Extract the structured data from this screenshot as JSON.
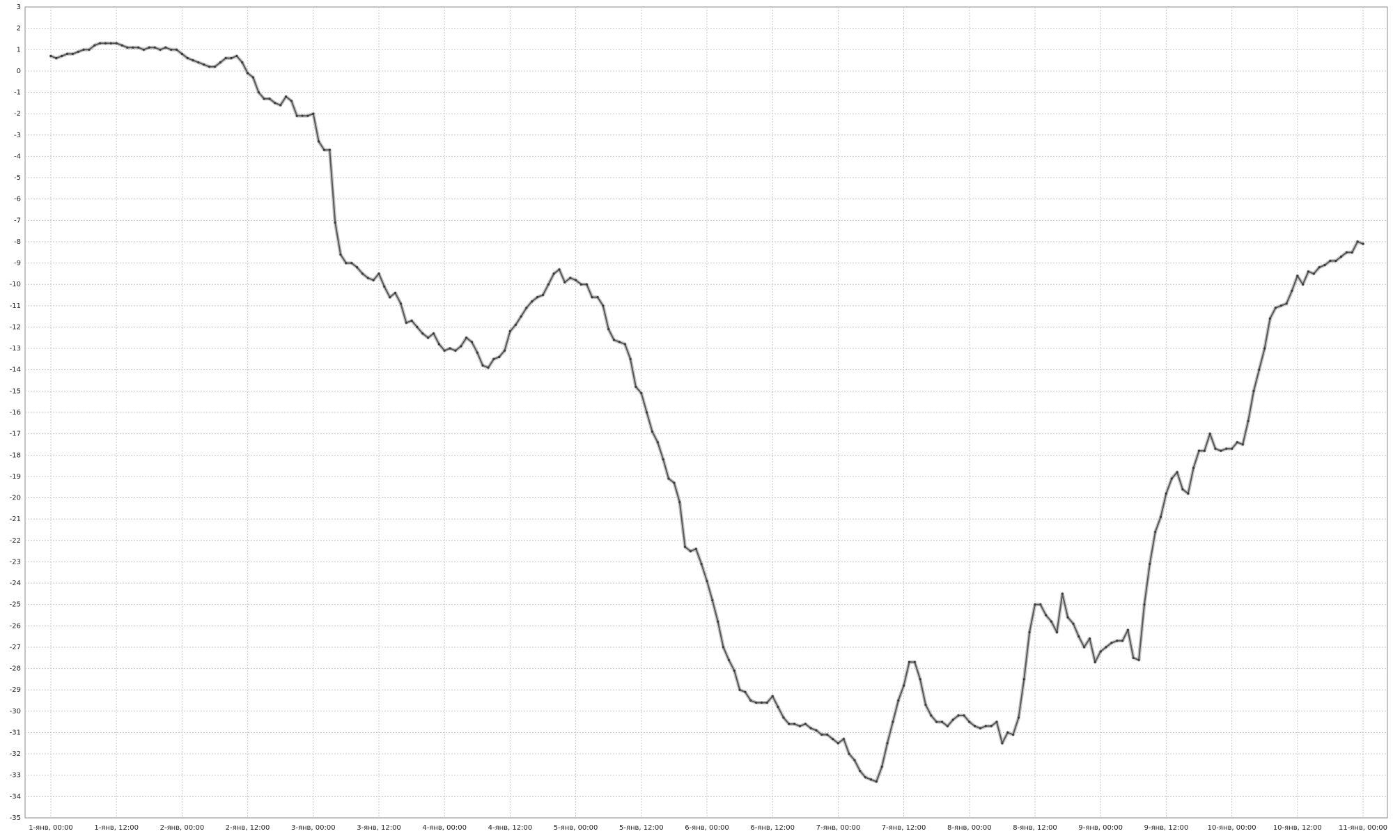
{
  "chart_data": {
    "type": "line",
    "title": "",
    "xlabel": "",
    "ylabel": "",
    "grid": true,
    "legend": "none",
    "ylim": [
      -35,
      3
    ],
    "xlim_hours": [
      -12,
      240
    ],
    "y_ticks": [
      3,
      2,
      1,
      0,
      -1,
      -2,
      -3,
      -4,
      -5,
      -6,
      -7,
      -8,
      -9,
      -10,
      -11,
      -12,
      -13,
      -14,
      -15,
      -16,
      -17,
      -18,
      -19,
      -20,
      -21,
      -22,
      -23,
      -24,
      -25,
      -26,
      -27,
      -28,
      -29,
      -30,
      -31,
      -32,
      -33,
      -34,
      -35
    ],
    "x_ticks": [
      {
        "hour": 0,
        "label": "1-янв, 00:00"
      },
      {
        "hour": 12,
        "label": "1-янв, 12:00"
      },
      {
        "hour": 24,
        "label": "2-янв, 00:00"
      },
      {
        "hour": 36,
        "label": "2-янв, 12:00"
      },
      {
        "hour": 48,
        "label": "3-янв, 00:00"
      },
      {
        "hour": 60,
        "label": "3-янв, 12:00"
      },
      {
        "hour": 72,
        "label": "4-янв, 00:00"
      },
      {
        "hour": 84,
        "label": "4-янв, 12:00"
      },
      {
        "hour": 96,
        "label": "5-янв, 00:00"
      },
      {
        "hour": 108,
        "label": "5-янв, 12:00"
      },
      {
        "hour": 120,
        "label": "6-янв, 00:00"
      },
      {
        "hour": 132,
        "label": "6-янв, 12:00"
      },
      {
        "hour": 144,
        "label": "7-янв, 00:00"
      },
      {
        "hour": 156,
        "label": "7-янв, 12:00"
      },
      {
        "hour": 168,
        "label": "8-янв, 00:00"
      },
      {
        "hour": 180,
        "label": "8-янв, 12:00"
      },
      {
        "hour": 192,
        "label": "9-янв, 00:00"
      },
      {
        "hour": 204,
        "label": "9-янв, 12:00"
      },
      {
        "hour": 216,
        "label": "10-янв, 00:00"
      },
      {
        "hour": 228,
        "label": "10-янв, 12:00"
      },
      {
        "hour": 240,
        "label": "11-янв, 00:00"
      }
    ],
    "series": [
      {
        "color": "#5a5a5a",
        "x": [
          0,
          1,
          2,
          3,
          4,
          5,
          6,
          7,
          8,
          9,
          10,
          11,
          12,
          13,
          14,
          15,
          16,
          17,
          18,
          19,
          20,
          21,
          22,
          23,
          24,
          25,
          26,
          27,
          28,
          29,
          30,
          31,
          32,
          33,
          34,
          35,
          36,
          37,
          38,
          39,
          40,
          41,
          42,
          43,
          44,
          45,
          46,
          47,
          48,
          49,
          50,
          51,
          52,
          53,
          54,
          55,
          56,
          57,
          58,
          59,
          60,
          61,
          62,
          63,
          64,
          65,
          66,
          67,
          68,
          69,
          70,
          71,
          72,
          73,
          74,
          75,
          76,
          77,
          78,
          79,
          80,
          81,
          82,
          83,
          84,
          85,
          86,
          87,
          88,
          89,
          90,
          91,
          92,
          93,
          94,
          95,
          96,
          97,
          98,
          99,
          100,
          101,
          102,
          103,
          104,
          105,
          106,
          107,
          108,
          109,
          110,
          111,
          112,
          113,
          114,
          115,
          116,
          117,
          118,
          119,
          120,
          121,
          122,
          123,
          124,
          125,
          126,
          127,
          128,
          129,
          130,
          131,
          132,
          133,
          134,
          135,
          136,
          137,
          138,
          139,
          140,
          141,
          142,
          143,
          144,
          145,
          146,
          147,
          148,
          149,
          150,
          151,
          152,
          153,
          154,
          155,
          156,
          157,
          158,
          159,
          160,
          161,
          162,
          163,
          164,
          165,
          166,
          167,
          168,
          169,
          170,
          171,
          172,
          173,
          174,
          175,
          176,
          177,
          178,
          179,
          180,
          181,
          182,
          183,
          184,
          185,
          186,
          187,
          188,
          189,
          190,
          191,
          192,
          193,
          194,
          195,
          196,
          197,
          198,
          199,
          200,
          201,
          202,
          203,
          204,
          205,
          206,
          207,
          208,
          209,
          210,
          211,
          212,
          213,
          214,
          215,
          216,
          217,
          218,
          219,
          220,
          221,
          222,
          223,
          224,
          225,
          226,
          227,
          228,
          229,
          230,
          231,
          232,
          233,
          234,
          235,
          236,
          237,
          238,
          239,
          240
        ],
        "y": [
          0.7,
          0.6,
          0.7,
          0.8,
          0.8,
          0.9,
          1.0,
          1.0,
          1.2,
          1.3,
          1.3,
          1.3,
          1.3,
          1.2,
          1.1,
          1.1,
          1.1,
          1.0,
          1.1,
          1.1,
          1.0,
          1.1,
          1.0,
          1.0,
          0.8,
          0.6,
          0.5,
          0.4,
          0.3,
          0.2,
          0.2,
          0.4,
          0.6,
          0.6,
          0.7,
          0.4,
          -0.1,
          -0.3,
          -1.0,
          -1.3,
          -1.3,
          -1.5,
          -1.6,
          -1.2,
          -1.4,
          -2.1,
          -2.1,
          -2.1,
          -2.0,
          -3.3,
          -3.7,
          -3.7,
          -7.1,
          -8.6,
          -9.0,
          -9.0,
          -9.2,
          -9.5,
          -9.7,
          -9.8,
          -9.5,
          -10.1,
          -10.6,
          -10.4,
          -10.9,
          -11.8,
          -11.7,
          -12.0,
          -12.3,
          -12.5,
          -12.3,
          -12.8,
          -13.1,
          -13.0,
          -13.1,
          -12.9,
          -12.5,
          -12.7,
          -13.2,
          -13.8,
          -13.9,
          -13.5,
          -13.4,
          -13.1,
          -12.2,
          -11.9,
          -11.5,
          -11.1,
          -10.8,
          -10.6,
          -10.5,
          -10.0,
          -9.5,
          -9.3,
          -9.9,
          -9.7,
          -9.8,
          -10.0,
          -10.0,
          -10.6,
          -10.6,
          -11.0,
          -12.1,
          -12.6,
          -12.7,
          -12.8,
          -13.5,
          -14.8,
          -15.1,
          -16.0,
          -16.9,
          -17.4,
          -18.2,
          -19.1,
          -19.3,
          -20.2,
          -22.3,
          -22.5,
          -22.4,
          -23.1,
          -23.9,
          -24.8,
          -25.8,
          -27.0,
          -27.6,
          -28.1,
          -29.0,
          -29.1,
          -29.5,
          -29.6,
          -29.6,
          -29.6,
          -29.3,
          -29.8,
          -30.3,
          -30.6,
          -30.6,
          -30.7,
          -30.6,
          -30.8,
          -30.9,
          -31.1,
          -31.1,
          -31.3,
          -31.5,
          -31.3,
          -32.0,
          -32.3,
          -32.8,
          -33.1,
          -33.2,
          -33.3,
          -32.6,
          -31.5,
          -30.5,
          -29.5,
          -28.8,
          -27.7,
          -27.7,
          -28.5,
          -29.7,
          -30.2,
          -30.5,
          -30.5,
          -30.7,
          -30.4,
          -30.2,
          -30.2,
          -30.5,
          -30.7,
          -30.8,
          -30.7,
          -30.7,
          -30.5,
          -31.5,
          -31.0,
          -31.1,
          -30.3,
          -28.5,
          -26.3,
          -25.0,
          -25.0,
          -25.5,
          -25.8,
          -26.3,
          -24.5,
          -25.6,
          -25.9,
          -26.5,
          -27.0,
          -26.6,
          -27.7,
          -27.2,
          -27.0,
          -26.8,
          -26.7,
          -26.7,
          -26.2,
          -27.5,
          -27.6,
          -25.0,
          -23.1,
          -21.6,
          -20.9,
          -19.8,
          -19.1,
          -18.8,
          -19.6,
          -19.8,
          -18.6,
          -17.8,
          -17.8,
          -17.0,
          -17.7,
          -17.8,
          -17.7,
          -17.7,
          -17.4,
          -17.5,
          -16.4,
          -15.0,
          -14.0,
          -13.0,
          -11.6,
          -11.1,
          -11.0,
          -10.9,
          -10.3,
          -9.6,
          -10.0,
          -9.4,
          -9.5,
          -9.2,
          -9.1,
          -8.9,
          -8.9,
          -8.7,
          -8.5,
          -8.5,
          -8.0,
          -8.1
        ]
      }
    ]
  }
}
